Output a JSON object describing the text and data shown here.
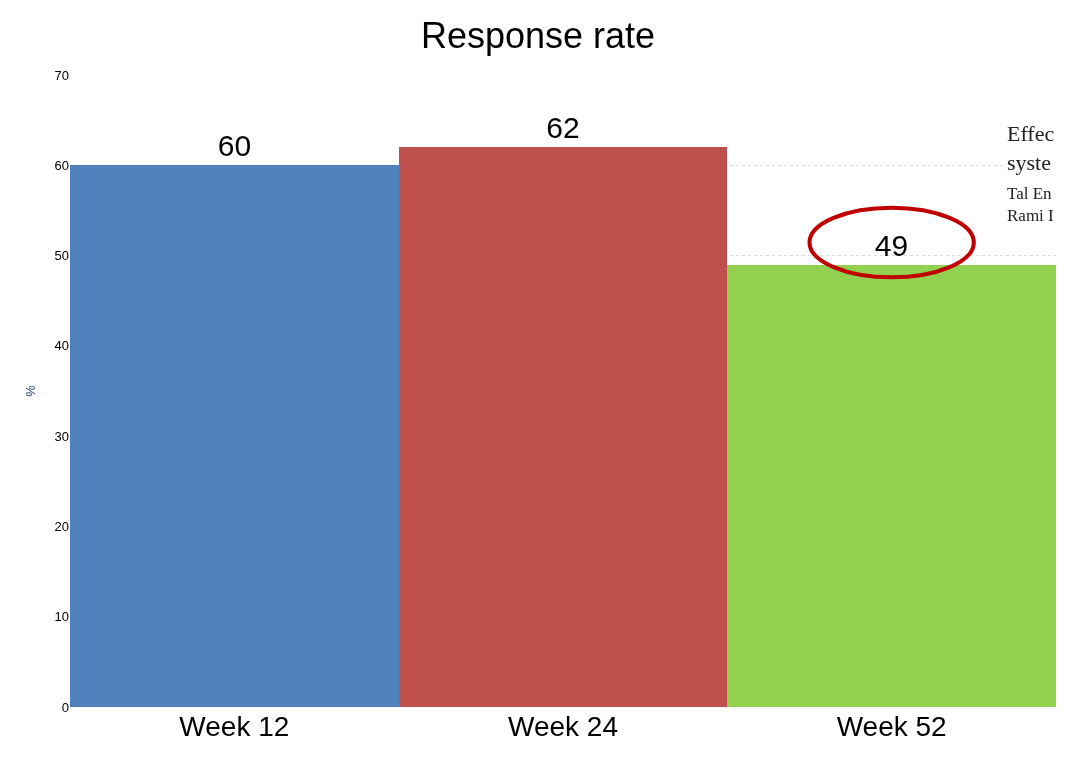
{
  "chart_data": {
    "type": "bar",
    "title": "Response rate",
    "ylabel": "%",
    "categories": [
      "Week 12",
      "Week 24",
      "Week 52"
    ],
    "values": [
      60,
      62,
      49
    ],
    "colors": [
      "#4f81bd",
      "#c0504d",
      "#92d050"
    ],
    "ylim": [
      0,
      70
    ],
    "yticks": [
      0,
      10,
      20,
      30,
      40,
      50,
      60,
      70
    ],
    "grid": "y",
    "data_labels": true,
    "annotations": [
      "Effec\nsyste",
      "Tal En\nRami I"
    ]
  }
}
